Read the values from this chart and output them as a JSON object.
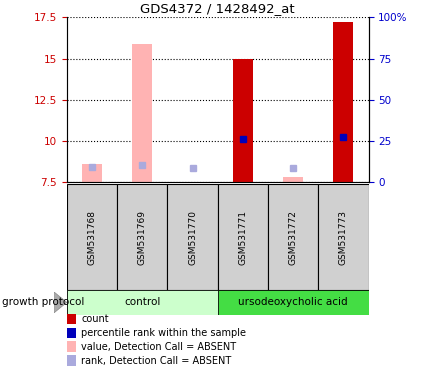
{
  "title": "GDS4372 / 1428492_at",
  "samples": [
    "GSM531768",
    "GSM531769",
    "GSM531770",
    "GSM531771",
    "GSM531772",
    "GSM531773"
  ],
  "ylim_left": [
    7.5,
    17.5
  ],
  "ylim_right": [
    0,
    100
  ],
  "yticks_left": [
    7.5,
    10.0,
    12.5,
    15.0,
    17.5
  ],
  "yticks_right": [
    0,
    25,
    50,
    75,
    100
  ],
  "left_tick_labels": [
    "7.5",
    "10",
    "12.5",
    "15",
    "17.5"
  ],
  "right_tick_labels": [
    "0",
    "25",
    "50",
    "75",
    "100%"
  ],
  "bar_values_present": [
    null,
    null,
    null,
    14.97,
    null,
    17.2
  ],
  "bar_values_absent": [
    8.6,
    15.9,
    null,
    null,
    7.85,
    null
  ],
  "percentile_present": [
    null,
    null,
    null,
    26.5,
    null,
    27.5
  ],
  "percentile_absent": [
    9.6,
    10.5,
    9.0,
    null,
    9.0,
    null
  ],
  "absent_bar_color": "#ffb3b3",
  "absent_rank_color": "#aaaadd",
  "present_bar_color": "#cc0000",
  "present_rank_color": "#0000bb",
  "grid_color": "#000000",
  "left_axis_color": "#cc0000",
  "right_axis_color": "#0000cc",
  "bg_color": "#ffffff",
  "control_color": "#ccffcc",
  "urso_color": "#44dd44",
  "sample_box_color": "#d0d0d0",
  "group_label": "growth protocol",
  "legend_items": [
    {
      "label": "count",
      "color": "#cc0000"
    },
    {
      "label": "percentile rank within the sample",
      "color": "#0000bb"
    },
    {
      "label": "value, Detection Call = ABSENT",
      "color": "#ffb3b3"
    },
    {
      "label": "rank, Detection Call = ABSENT",
      "color": "#aaaadd"
    }
  ]
}
